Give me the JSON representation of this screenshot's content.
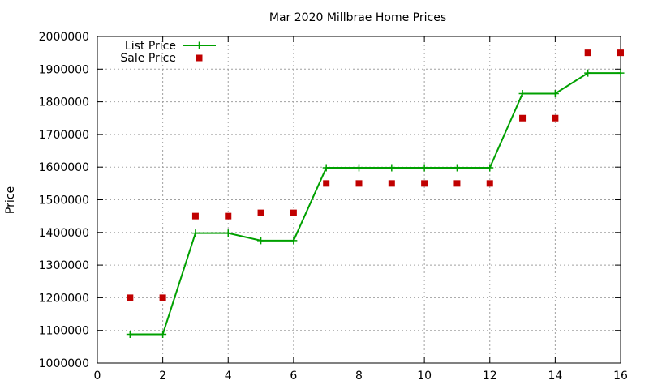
{
  "chart_data": {
    "type": "line",
    "title": "Mar 2020 Millbrae Home Prices",
    "xlabel": "",
    "ylabel": "Price",
    "xlim": [
      0,
      16
    ],
    "ylim": [
      1000000,
      2000000
    ],
    "xticks": [
      0,
      2,
      4,
      6,
      8,
      10,
      12,
      14,
      16
    ],
    "yticks": [
      1000000,
      1100000,
      1200000,
      1300000,
      1400000,
      1500000,
      1600000,
      1700000,
      1800000,
      1900000,
      2000000
    ],
    "grid": true,
    "legend_position": "top-left",
    "series": [
      {
        "name": "List Price",
        "style": "line-with-plus-markers",
        "color": "#00a000",
        "x": [
          1,
          2,
          3,
          4,
          5,
          6,
          7,
          8,
          9,
          10,
          11,
          12,
          13,
          14,
          15,
          16
        ],
        "y": [
          1088000,
          1088000,
          1398000,
          1398000,
          1375000,
          1375000,
          1598000,
          1598000,
          1598000,
          1598000,
          1598000,
          1598000,
          1825000,
          1825000,
          1888000,
          1888000
        ]
      },
      {
        "name": "Sale Price",
        "style": "square-markers",
        "color": "#c00000",
        "x": [
          1,
          2,
          3,
          4,
          5,
          6,
          7,
          8,
          9,
          10,
          11,
          12,
          13,
          14,
          15,
          16
        ],
        "y": [
          1200000,
          1200000,
          1450000,
          1450000,
          1460000,
          1460000,
          1550000,
          1550000,
          1550000,
          1550000,
          1550000,
          1550000,
          1750000,
          1750000,
          1950000,
          1950000
        ]
      }
    ]
  }
}
